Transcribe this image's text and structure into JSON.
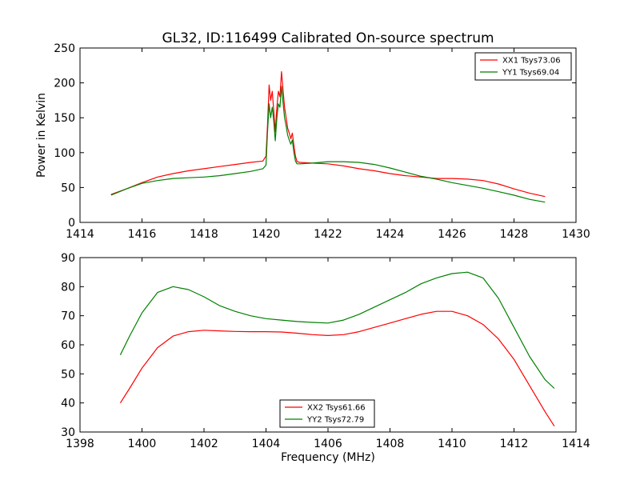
{
  "chart_data": [
    {
      "type": "line",
      "title": "GL32, ID:116499 Calibrated On-source spectrum",
      "xlabel": "",
      "ylabel": "Power in Kelvin",
      "xlim": [
        1414,
        1430
      ],
      "ylim": [
        0,
        250
      ],
      "xticks": [
        "1414",
        "1416",
        "1418",
        "1420",
        "1422",
        "1424",
        "1426",
        "1428",
        "1430"
      ],
      "yticks": [
        "0",
        "50",
        "100",
        "150",
        "200",
        "250"
      ],
      "grid": false,
      "legend_position": "top-right",
      "series": [
        {
          "name": "XX1 Tsys73.06",
          "color": "#ff0000",
          "x": [
            1415.0,
            1415.5,
            1416.0,
            1416.5,
            1417.0,
            1417.5,
            1418.0,
            1418.5,
            1419.0,
            1419.5,
            1419.9,
            1420.0,
            1420.05,
            1420.1,
            1420.15,
            1420.2,
            1420.25,
            1420.3,
            1420.35,
            1420.4,
            1420.45,
            1420.5,
            1420.55,
            1420.6,
            1420.65,
            1420.7,
            1420.75,
            1420.8,
            1420.85,
            1420.9,
            1420.95,
            1421.0,
            1421.1,
            1421.5,
            1422.0,
            1422.5,
            1423.0,
            1423.5,
            1424.0,
            1424.5,
            1425.0,
            1425.5,
            1426.0,
            1426.5,
            1427.0,
            1427.5,
            1428.0,
            1428.5,
            1429.0
          ],
          "y": [
            40,
            48,
            57,
            65,
            70,
            74,
            77,
            80,
            83,
            86,
            88,
            95,
            140,
            197,
            175,
            188,
            160,
            130,
            165,
            188,
            180,
            216,
            190,
            165,
            150,
            135,
            128,
            120,
            128,
            110,
            95,
            87,
            86,
            85,
            84,
            81,
            77,
            74,
            70,
            67,
            65,
            63,
            63,
            62,
            60,
            55,
            48,
            42,
            37
          ]
        },
        {
          "name": "YY1 Tsys69.04",
          "color": "#008000",
          "x": [
            1415.0,
            1415.5,
            1416.0,
            1416.5,
            1417.0,
            1417.5,
            1418.0,
            1418.5,
            1419.0,
            1419.5,
            1419.9,
            1420.0,
            1420.05,
            1420.1,
            1420.15,
            1420.2,
            1420.25,
            1420.3,
            1420.35,
            1420.4,
            1420.45,
            1420.5,
            1420.55,
            1420.6,
            1420.65,
            1420.7,
            1420.75,
            1420.8,
            1420.85,
            1420.9,
            1420.95,
            1421.0,
            1421.1,
            1421.5,
            1422.0,
            1422.5,
            1423.0,
            1423.5,
            1424.0,
            1424.5,
            1425.0,
            1425.5,
            1426.0,
            1426.5,
            1427.0,
            1427.5,
            1428.0,
            1428.5,
            1429.0
          ],
          "y": [
            39,
            48,
            56,
            60,
            63,
            64,
            65,
            67,
            70,
            73,
            77,
            82,
            130,
            170,
            150,
            165,
            145,
            117,
            150,
            170,
            165,
            195,
            172,
            150,
            138,
            125,
            118,
            112,
            118,
            100,
            88,
            84,
            84,
            85,
            87,
            87,
            86,
            83,
            78,
            72,
            66,
            62,
            57,
            53,
            49,
            44,
            39,
            33,
            29
          ]
        }
      ]
    },
    {
      "type": "line",
      "title": "",
      "xlabel": "Frequency (MHz)",
      "ylabel": "",
      "xlim": [
        1398,
        1414
      ],
      "ylim": [
        30,
        90
      ],
      "xticks": [
        "1398",
        "1400",
        "1402",
        "1404",
        "1406",
        "1408",
        "1410",
        "1412",
        "1414"
      ],
      "yticks": [
        "30",
        "40",
        "50",
        "60",
        "70",
        "80",
        "90"
      ],
      "grid": false,
      "legend_position": "bottom-center",
      "series": [
        {
          "name": "XX2 Tsys61.66",
          "color": "#ff0000",
          "x": [
            1399.3,
            1399.6,
            1400.0,
            1400.5,
            1401.0,
            1401.5,
            1402.0,
            1402.5,
            1403.0,
            1403.5,
            1404.0,
            1404.5,
            1405.0,
            1405.5,
            1406.0,
            1406.5,
            1407.0,
            1407.5,
            1408.0,
            1408.5,
            1409.0,
            1409.5,
            1410.0,
            1410.5,
            1411.0,
            1411.5,
            1412.0,
            1412.5,
            1413.0,
            1413.3
          ],
          "y": [
            40,
            45,
            52,
            59,
            63,
            64.5,
            65,
            64.8,
            64.6,
            64.5,
            64.5,
            64.4,
            64.0,
            63.5,
            63.2,
            63.5,
            64.5,
            66,
            67.5,
            69,
            70.5,
            71.5,
            71.5,
            70,
            67,
            62,
            55,
            46,
            37,
            32
          ]
        },
        {
          "name": "YY2 Tsys72.79",
          "color": "#008000",
          "x": [
            1399.3,
            1399.6,
            1400.0,
            1400.5,
            1401.0,
            1401.5,
            1402.0,
            1402.5,
            1403.0,
            1403.5,
            1404.0,
            1404.5,
            1405.0,
            1405.5,
            1406.0,
            1406.5,
            1407.0,
            1407.5,
            1408.0,
            1408.5,
            1409.0,
            1409.5,
            1410.0,
            1410.5,
            1411.0,
            1411.5,
            1412.0,
            1412.5,
            1413.0,
            1413.3
          ],
          "y": [
            56.5,
            63,
            71,
            78,
            80,
            79,
            76.5,
            73.5,
            71.5,
            70,
            69,
            68.5,
            68,
            67.7,
            67.5,
            68.5,
            70.5,
            73,
            75.5,
            78,
            81,
            83,
            84.5,
            85,
            83,
            76,
            66,
            56,
            48,
            45
          ]
        }
      ]
    }
  ]
}
